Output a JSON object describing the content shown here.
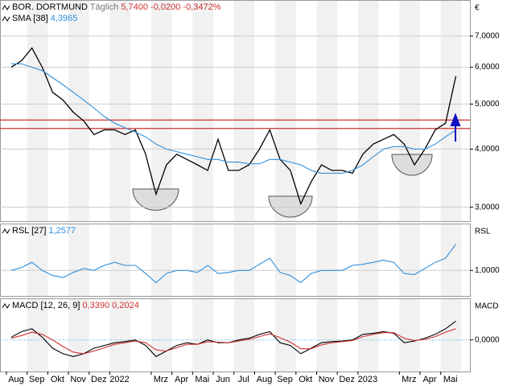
{
  "chart_data": [
    {
      "type": "line",
      "log": true,
      "y_label": "€",
      "period": "Täglich",
      "categories": [
        "Aug",
        null,
        "Sep",
        null,
        "Okt",
        null,
        "Nov",
        null,
        "Dez",
        null,
        "2022",
        null,
        null,
        null,
        "Mrz",
        null,
        "Apr",
        null,
        "Mai",
        null,
        "Jun",
        null,
        "Jul",
        null,
        "Aug",
        null,
        "Sep",
        null,
        "Okt",
        null,
        "Nov",
        null,
        "Dez",
        null,
        "2023",
        null,
        null,
        null,
        "Mrz",
        null,
        "Apr",
        null,
        "Mai",
        null
      ],
      "ylim": [
        2.8,
        8.37
      ],
      "yticks": [
        {
          "value": 3,
          "label": "3,0000"
        },
        {
          "value": 4,
          "label": "4,0000"
        },
        {
          "value": 5,
          "label": "5,0000"
        },
        {
          "value": 6,
          "label": "6,0000"
        },
        {
          "value": 7,
          "label": "7,0000"
        }
      ],
      "hlines": [
        4.62,
        4.43
      ],
      "hline_color": "#d03030",
      "series": [
        {
          "name": "BOR. DORTMUND",
          "color": "#000000",
          "last_label": "5,7400",
          "change": "-0,0200",
          "change_pct": "-0,3472%",
          "values": [
            6.0,
            6.2,
            6.6,
            6.0,
            5.3,
            5.1,
            4.8,
            4.6,
            4.3,
            4.4,
            4.4,
            4.3,
            4.4,
            3.9,
            3.2,
            3.7,
            3.9,
            3.8,
            3.7,
            3.6,
            4.2,
            3.6,
            3.6,
            3.7,
            4.0,
            4.4,
            3.8,
            3.6,
            3.05,
            3.4,
            3.7,
            3.6,
            3.6,
            3.55,
            3.9,
            4.1,
            4.2,
            4.3,
            4.1,
            3.7,
            4.0,
            4.4,
            4.55,
            5.74
          ]
        },
        {
          "name": "SMA",
          "params": "[38]",
          "color": "#2f8fdc",
          "last_label": "4,3965",
          "values": [
            6.1,
            6.1,
            6.0,
            5.9,
            5.7,
            5.5,
            5.3,
            5.1,
            4.9,
            4.7,
            4.55,
            4.45,
            4.35,
            4.25,
            4.1,
            4.0,
            3.95,
            3.9,
            3.85,
            3.8,
            3.8,
            3.75,
            3.75,
            3.72,
            3.72,
            3.8,
            3.8,
            3.75,
            3.7,
            3.6,
            3.55,
            3.55,
            3.55,
            3.6,
            3.7,
            3.85,
            4.0,
            4.05,
            4.05,
            4.0,
            4.0,
            4.1,
            4.25,
            4.3965
          ]
        }
      ]
    },
    {
      "type": "line",
      "log": false,
      "y_label": "RSL",
      "ylim": [
        0.75,
        1.46
      ],
      "yticks": [
        {
          "value": 1,
          "label": "1,0000"
        }
      ],
      "series": [
        {
          "name": "RSL",
          "params": "[27]",
          "color": "#2f8fdc",
          "last_label": "1,2577",
          "values": [
            1.0,
            1.03,
            1.08,
            1.0,
            0.95,
            0.93,
            0.98,
            1.02,
            1.0,
            1.05,
            1.08,
            1.05,
            1.05,
            0.97,
            0.88,
            0.97,
            1.0,
            1.0,
            0.98,
            1.05,
            0.97,
            0.98,
            1.0,
            1.0,
            1.06,
            1.12,
            0.98,
            0.95,
            0.88,
            0.97,
            1.0,
            1.0,
            1.0,
            1.05,
            1.06,
            1.08,
            1.1,
            1.08,
            0.97,
            0.96,
            1.02,
            1.08,
            1.12,
            1.2577
          ]
        }
      ]
    },
    {
      "type": "line",
      "log": false,
      "y_label": "MACD",
      "ylim": [
        -0.57,
        0.75
      ],
      "yticks": [
        {
          "value": 0,
          "label": "0,0000"
        }
      ],
      "series": [
        {
          "name": "MACD",
          "params": "[12, 26, 9]",
          "color": "#000000",
          "last_label": "0,3390",
          "values": [
            0.05,
            0.15,
            0.2,
            0.05,
            -0.15,
            -0.25,
            -0.3,
            -0.25,
            -0.15,
            -0.1,
            -0.05,
            -0.03,
            0,
            -0.1,
            -0.3,
            -0.2,
            -0.1,
            -0.05,
            -0.08,
            0,
            -0.05,
            -0.05,
            0,
            0.03,
            0.1,
            0.15,
            -0.05,
            -0.1,
            -0.25,
            -0.15,
            -0.05,
            -0.03,
            -0.02,
            0,
            0.1,
            0.12,
            0.15,
            0.12,
            -0.05,
            -0.02,
            0.03,
            0.1,
            0.2,
            0.339
          ]
        },
        {
          "color": "#d03030",
          "last_label": "0,2024",
          "values": [
            0.03,
            0.08,
            0.14,
            0.1,
            0,
            -0.12,
            -0.22,
            -0.25,
            -0.2,
            -0.14,
            -0.08,
            -0.05,
            -0.02,
            -0.05,
            -0.18,
            -0.2,
            -0.14,
            -0.08,
            -0.08,
            -0.03,
            -0.04,
            -0.05,
            -0.02,
            0.01,
            0.06,
            0.11,
            0.04,
            -0.04,
            -0.16,
            -0.16,
            -0.09,
            -0.05,
            -0.03,
            -0.01,
            0.06,
            0.1,
            0.13,
            0.13,
            0.03,
            -0.01,
            0.01,
            0.06,
            0.14,
            0.2024
          ]
        }
      ]
    }
  ]
}
